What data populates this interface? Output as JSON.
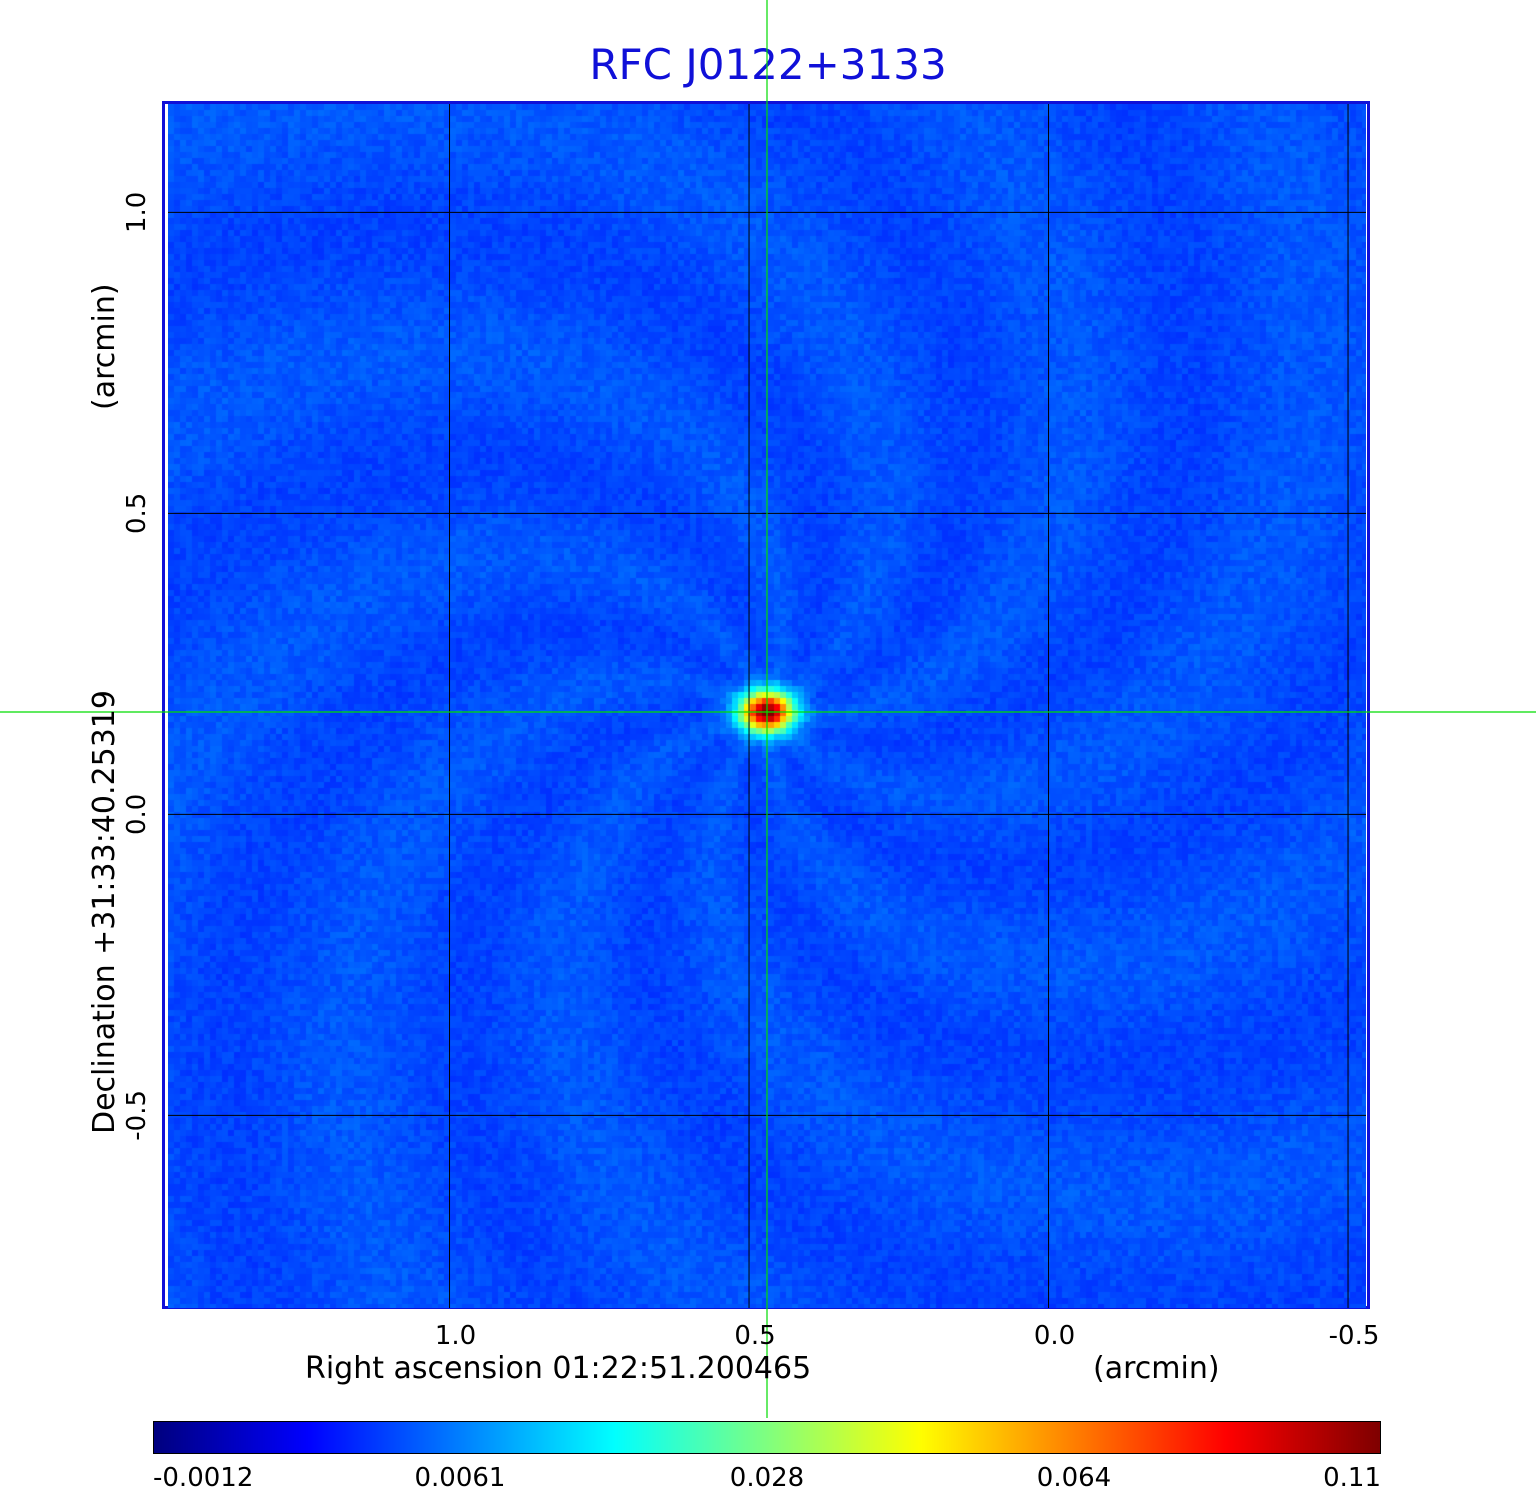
{
  "chart_data": {
    "type": "heatmap",
    "title": "RFC J0122+3133",
    "xlabel": "Right ascension  01:22:51.200465",
    "xlabel_unit": "(arcmin)",
    "ylabel": "Declination  +31:33:40.25319",
    "ylabel_unit": "(arcmin)",
    "x_ticks": [
      "1.0",
      "0.5",
      "0.0",
      "-0.5"
    ],
    "y_ticks": [
      "1.0",
      "0.5",
      "0.0",
      "-0.5"
    ],
    "x_tick_values": [
      1.0,
      0.5,
      0.0,
      -0.5
    ],
    "y_tick_values": [
      1.0,
      0.5,
      0.0,
      -0.5
    ],
    "xlim": [
      1.47,
      -0.53
    ],
    "ylim": [
      -0.82,
      1.18
    ],
    "grid": true,
    "crosshair": {
      "x": 0.47,
      "y": 0.17
    },
    "source_peak": {
      "x": 0.47,
      "y": 0.17,
      "value": 0.11
    },
    "colorbar": {
      "ticks": [
        "-0.0012",
        "0.0061",
        "0.028",
        "0.064",
        "0.11"
      ],
      "tick_values": [
        -0.0012,
        0.0061,
        0.028,
        0.064,
        0.11
      ],
      "colormap": "jet"
    }
  },
  "colors": {
    "title": "#1010d8",
    "background_map": "#1a3ff5",
    "grid": "#000000",
    "crosshair": "#00dd00"
  }
}
